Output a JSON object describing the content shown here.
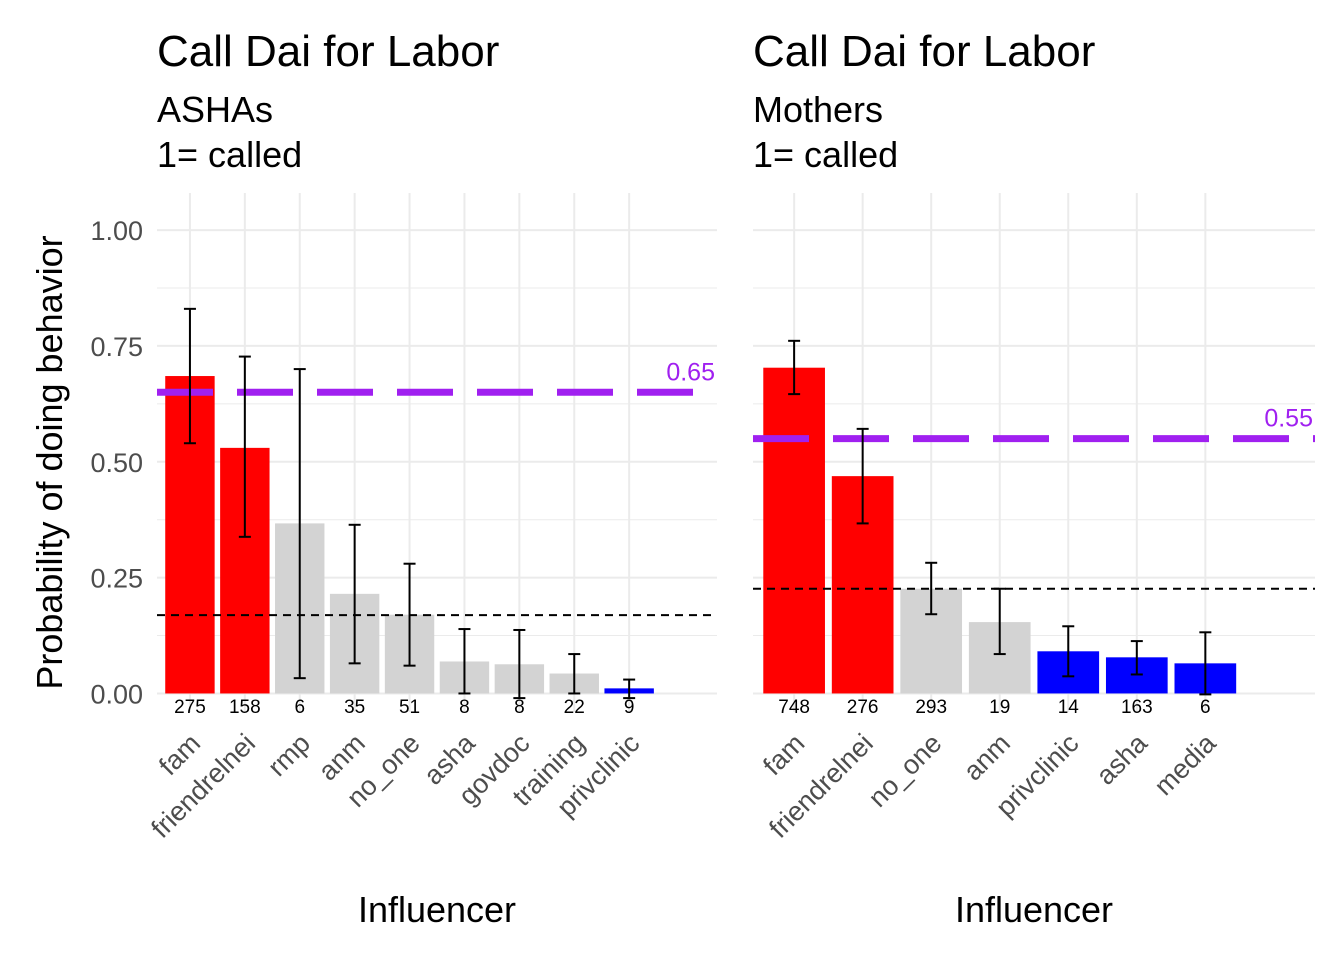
{
  "chart_data": [
    {
      "type": "bar",
      "title": "Call Dai for Labor",
      "subtitle_lines": [
        "ASHAs",
        "1= called"
      ],
      "xlabel": "Influencer",
      "ylabel": "Probability of doing behavior",
      "ylim": [
        -0.04,
        1.08
      ],
      "yticks": [
        0.0,
        0.25,
        0.5,
        0.75,
        1.0
      ],
      "ytick_labels": [
        "0.00",
        "0.25",
        "0.50",
        "0.75",
        "1.00"
      ],
      "show_y_axis_labels": true,
      "grid": true,
      "categories": [
        "fam",
        "friendrelnei",
        "rmp",
        "anm",
        "no_one",
        "asha",
        "govdoc",
        "training",
        "privclinic"
      ],
      "values": [
        0.685,
        0.53,
        0.367,
        0.215,
        0.17,
        0.069,
        0.063,
        0.043,
        0.011
      ],
      "error_low": [
        0.54,
        0.338,
        0.033,
        0.065,
        0.06,
        0.0,
        -0.01,
        0.0,
        -0.01
      ],
      "error_high": [
        0.83,
        0.727,
        0.7,
        0.364,
        0.28,
        0.139,
        0.137,
        0.085,
        0.03
      ],
      "counts": [
        "275",
        "158",
        "6",
        "35",
        "51",
        "8",
        "8",
        "22",
        "9"
      ],
      "colors": [
        "#ff0000",
        "#ff0000",
        "#d3d3d3",
        "#d3d3d3",
        "#d3d3d3",
        "#d3d3d3",
        "#d3d3d3",
        "#d3d3d3",
        "#0000ff"
      ],
      "reference_line": {
        "value": 0.65,
        "label": "0.65",
        "color": "#a020f0"
      },
      "baseline_line": {
        "value": 0.169,
        "color": "#000000"
      }
    },
    {
      "type": "bar",
      "title": "Call Dai for Labor",
      "subtitle_lines": [
        "Mothers",
        "1= called"
      ],
      "xlabel": "Influencer",
      "ylabel": "",
      "ylim": [
        -0.04,
        1.08
      ],
      "yticks": [
        0.0,
        0.25,
        0.5,
        0.75,
        1.0
      ],
      "ytick_labels": [],
      "show_y_axis_labels": false,
      "grid": true,
      "categories": [
        "fam",
        "friendrelnei",
        "no_one",
        "anm",
        "privclinic",
        "asha",
        "media"
      ],
      "values": [
        0.703,
        0.469,
        0.226,
        0.154,
        0.091,
        0.078,
        0.065
      ],
      "error_low": [
        0.646,
        0.367,
        0.171,
        0.085,
        0.037,
        0.041,
        -0.002
      ],
      "error_high": [
        0.761,
        0.571,
        0.282,
        0.226,
        0.145,
        0.113,
        0.132
      ],
      "counts": [
        "748",
        "276",
        "293",
        "19",
        "14",
        "163",
        "6"
      ],
      "colors": [
        "#ff0000",
        "#ff0000",
        "#d3d3d3",
        "#d3d3d3",
        "#0000ff",
        "#0000ff",
        "#0000ff"
      ],
      "reference_line": {
        "value": 0.55,
        "label": "0.55",
        "color": "#a020f0"
      },
      "baseline_line": {
        "value": 0.226,
        "color": "#000000"
      }
    }
  ]
}
